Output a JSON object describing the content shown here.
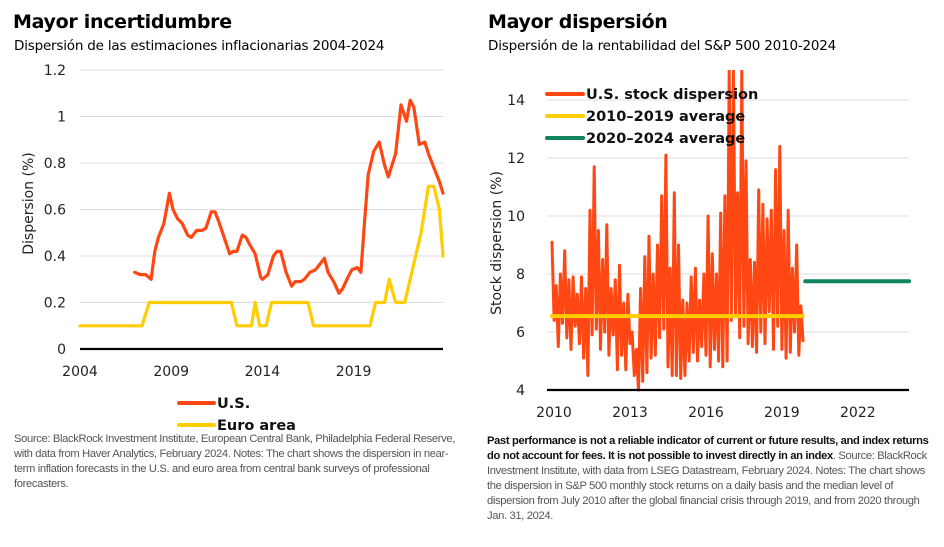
{
  "left": {
    "title": "Mayor incertidumbre",
    "subtitle": "Dispersión de las estimaciones inflacionarias 2004-2024",
    "note": "Source: BlackRock Investment Institute, European Central Bank, Philadelphia Federal Reserve, with data from Haver Analytics, February 2024. Notes: The chart shows the dispersion in near-term inflation forecasts in the U.S. and euro area from central bank surveys of professional forecasters."
  },
  "right": {
    "title": "Mayor dispersión",
    "subtitle": "Dispersión de la rentabilidad del S&P 500 2010-2024",
    "note_bold": "Past performance is not a reliable indicator of current or future results, and index returns do not account for fees. It is not possible to invest directly in an index",
    "note": ". Source: BlackRock Investment Institute, with data from LSEG Datastream, February 2024. Notes: The chart shows the dispersion in S&P 500 monthly stock returns on a daily basis and the median level of dispersion from July 2010 after the global financial crisis through 2019, and from 2020 through Jan. 31, 2024."
  },
  "chart_data": [
    {
      "type": "line",
      "title": "Mayor incertidumbre",
      "subtitle": "Dispersión de las estimaciones inflacionarias 2004-2024",
      "xlabel": "",
      "ylabel": "Dispersion (%)",
      "xlim": [
        2004,
        2023.9
      ],
      "ylim": [
        0,
        1.2
      ],
      "xticks": [
        "2004",
        "2009",
        "2014",
        "2019"
      ],
      "yticks": [
        "0",
        "0.2",
        "0.4",
        "0.6",
        "0.8",
        "1",
        "1.2"
      ],
      "grid": true,
      "legend": "bottom-center",
      "series": [
        {
          "name": "U.S.",
          "color": "#ff4713",
          "x": [
            2007.0,
            2007.3,
            2007.6,
            2007.9,
            2008.1,
            2008.3,
            2008.6,
            2008.9,
            2009.1,
            2009.35,
            2009.6,
            2009.9,
            2010.1,
            2010.4,
            2010.7,
            2010.9,
            2011.2,
            2011.4,
            2011.6,
            2011.9,
            2012.2,
            2012.4,
            2012.6,
            2012.9,
            2013.1,
            2013.3,
            2013.6,
            2013.9,
            2014.0,
            2014.3,
            2014.6,
            2014.8,
            2015.0,
            2015.3,
            2015.6,
            2015.8,
            2016.1,
            2016.3,
            2016.6,
            2016.9,
            2017.2,
            2017.4,
            2017.6,
            2017.9,
            2018.2,
            2018.4,
            2018.7,
            2018.9,
            2019.2,
            2019.4,
            2019.6,
            2019.8,
            2020.1,
            2020.4,
            2020.7,
            2020.9,
            2021.3,
            2021.6,
            2021.9,
            2022.1,
            2022.3,
            2022.6,
            2022.9,
            2023.1,
            2023.4,
            2023.7,
            2023.9
          ],
          "values": [
            0.33,
            0.32,
            0.32,
            0.3,
            0.42,
            0.48,
            0.54,
            0.67,
            0.6,
            0.56,
            0.54,
            0.49,
            0.48,
            0.51,
            0.51,
            0.52,
            0.59,
            0.59,
            0.55,
            0.48,
            0.41,
            0.42,
            0.42,
            0.49,
            0.48,
            0.45,
            0.41,
            0.31,
            0.3,
            0.32,
            0.4,
            0.42,
            0.42,
            0.33,
            0.27,
            0.29,
            0.29,
            0.3,
            0.33,
            0.34,
            0.37,
            0.39,
            0.33,
            0.29,
            0.24,
            0.26,
            0.31,
            0.34,
            0.35,
            0.33,
            0.55,
            0.75,
            0.85,
            0.89,
            0.79,
            0.74,
            0.84,
            1.05,
            0.98,
            1.07,
            1.04,
            0.88,
            0.89,
            0.84,
            0.78,
            0.72,
            0.67
          ]
        },
        {
          "name": "Euro area",
          "color": "#ffcd00",
          "x": [
            2004.0,
            2007.4,
            2007.8,
            2012.3,
            2012.6,
            2013.4,
            2013.6,
            2013.85,
            2014.2,
            2014.5,
            2016.5,
            2016.8,
            2019.9,
            2020.2,
            2020.7,
            2020.95,
            2021.3,
            2021.8,
            2022.7,
            2023.1,
            2023.4,
            2023.7,
            2023.9
          ],
          "values": [
            0.1,
            0.1,
            0.2,
            0.2,
            0.1,
            0.1,
            0.2,
            0.1,
            0.1,
            0.2,
            0.2,
            0.1,
            0.1,
            0.2,
            0.2,
            0.3,
            0.2,
            0.2,
            0.5,
            0.7,
            0.7,
            0.6,
            0.4
          ]
        }
      ]
    },
    {
      "type": "line",
      "title": "Mayor dispersión",
      "subtitle": "Dispersión de la rentabilidad del S&P 500 2010-2024",
      "xlabel": "",
      "ylabel": "Stock dispersion (%)",
      "xlim": [
        2010,
        2024.1
      ],
      "ylim": [
        4,
        15
      ],
      "xticks": [
        "2010",
        "2013",
        "2016",
        "2019",
        "2022"
      ],
      "yticks": [
        "4",
        "6",
        "8",
        "10",
        "12",
        "14"
      ],
      "grid": true,
      "legend": "top-left",
      "series": [
        {
          "name": "U.S. stock dispersion",
          "color": "#ff4713",
          "x_start": 2010.0,
          "x_step": 0.0833,
          "values": [
            9.1,
            6.4,
            7.6,
            5.5,
            8.0,
            6.3,
            8.8,
            5.8,
            7.8,
            5.4,
            7.9,
            6.2,
            7.3,
            5.6,
            7.9,
            5.1,
            7.5,
            4.5,
            10.2,
            5.9,
            11.7,
            6.1,
            9.5,
            5.4,
            8.5,
            6.0,
            9.7,
            5.2,
            7.5,
            5.9,
            7.8,
            4.7,
            8.3,
            5.2,
            7.0,
            4.7,
            7.3,
            5.6,
            6.0,
            4.5,
            5.4,
            4.0,
            7.5,
            4.3,
            8.6,
            4.6,
            9.3,
            5.1,
            8.0,
            5.2,
            9.0,
            5.8,
            10.7,
            6.1,
            12.1,
            4.8,
            8.2,
            4.5,
            10.8,
            4.5,
            9.0,
            4.4,
            7.1,
            4.5,
            7.0,
            5.0,
            7.9,
            5.3,
            8.2,
            5.0,
            7.1,
            5.5,
            8.0,
            5.2,
            10.0,
            4.8,
            8.7,
            5.4,
            8.0,
            5.0,
            10.1,
            4.8,
            10.7,
            5.0,
            15.0,
            6.4,
            15.0,
            6.6,
            10.8,
            5.8,
            15.0,
            6.2,
            11.9,
            5.6,
            8.5,
            5.5,
            8.4,
            5.3,
            10.9,
            6.0,
            10.4,
            5.6,
            9.9,
            6.7,
            10.2,
            5.4,
            11.6,
            6.2,
            12.4,
            5.4,
            9.5,
            5.1,
            10.2,
            5.3,
            8.2,
            6.0,
            9.0,
            5.2,
            6.9,
            5.7
          ]
        },
        {
          "name": "2010–2019 average",
          "color": "#ffcd00",
          "x": [
            2010.0,
            2019.9
          ],
          "values": [
            6.55,
            6.55
          ]
        },
        {
          "name": "2020–2024 average",
          "color": "#10845a",
          "x": [
            2020.0,
            2024.1
          ],
          "values": [
            7.75,
            7.75
          ]
        }
      ]
    }
  ]
}
